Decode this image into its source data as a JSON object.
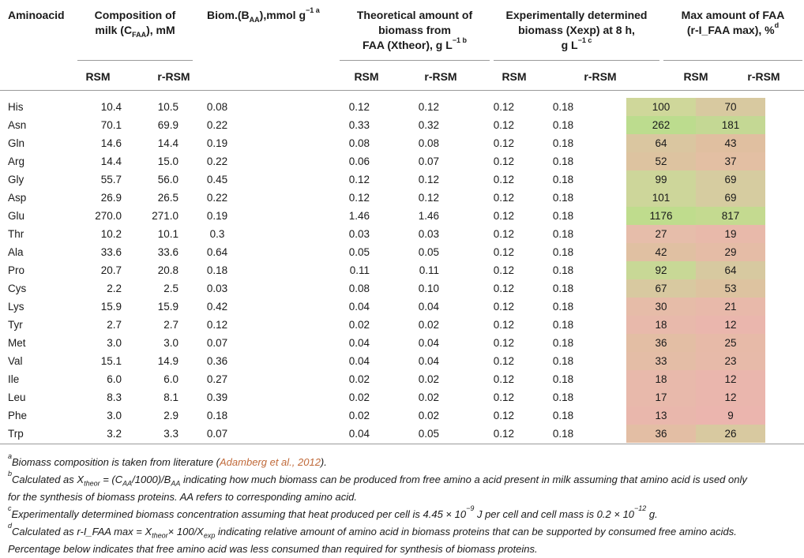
{
  "headers": {
    "aminoacid": "Aminoacid",
    "milk_l1": "Composition of",
    "milk_l2a": "milk (C",
    "milk_l2sub": "FAA",
    "milk_l2b": "), mM",
    "biom_a": "Biom.(B",
    "biom_sub": "AA",
    "biom_b": "),mmol g",
    "biom_sup": "−1 a",
    "theo_l1": "Theoretical amount of",
    "theo_l2": "biomass from",
    "theo_l3": "FAA (Xtheor), g L",
    "theo_sup": "−1 b",
    "exp_l1": "Experimentally determined",
    "exp_l2": "biomass (Xexp) at 8 h,",
    "exp_l3": "g L",
    "exp_sup": "−1 c",
    "max_l1": "Max amount of FAA",
    "max_l2": "(r-I_FAA max), %",
    "max_sup": "d",
    "rsm": "RSM",
    "rrsm": "r-RSM"
  },
  "rows": [
    {
      "aa": "His",
      "rsm": "10.4",
      "rrsm": "10.5",
      "biom": "0.08",
      "th1": "0.12",
      "th2": "0.12",
      "ex1": "0.12",
      "ex2": "0.18",
      "m1": "100",
      "m2": "70",
      "c1": "#cfd79a",
      "c2": "#d8c9a0"
    },
    {
      "aa": "Asn",
      "rsm": "70.1",
      "rrsm": "69.9",
      "biom": "0.22",
      "th1": "0.33",
      "th2": "0.32",
      "ex1": "0.12",
      "ex2": "0.18",
      "m1": "262",
      "m2": "181",
      "c1": "#bcdc8e",
      "c2": "#c4d894"
    },
    {
      "aa": "Gln",
      "rsm": "14.6",
      "rrsm": "14.4",
      "biom": "0.19",
      "th1": "0.08",
      "th2": "0.08",
      "ex1": "0.12",
      "ex2": "0.18",
      "m1": "64",
      "m2": "43",
      "c1": "#dac6a0",
      "c2": "#e0bfa0"
    },
    {
      "aa": "Arg",
      "rsm": "14.4",
      "rrsm": "15.0",
      "biom": "0.22",
      "th1": "0.06",
      "th2": "0.07",
      "ex1": "0.12",
      "ex2": "0.18",
      "m1": "52",
      "m2": "37",
      "c1": "#ddc3a0",
      "c2": "#e3bfa3"
    },
    {
      "aa": "Gly",
      "rsm": "55.7",
      "rrsm": "56.0",
      "biom": "0.45",
      "th1": "0.12",
      "th2": "0.12",
      "ex1": "0.12",
      "ex2": "0.18",
      "m1": "99",
      "m2": "69",
      "c1": "#cdd69a",
      "c2": "#d6cca0"
    },
    {
      "aa": "Asp",
      "rsm": "26.9",
      "rrsm": "26.5",
      "biom": "0.22",
      "th1": "0.12",
      "th2": "0.12",
      "ex1": "0.12",
      "ex2": "0.18",
      "m1": "101",
      "m2": "69",
      "c1": "#cdd69a",
      "c2": "#d6cca0"
    },
    {
      "aa": "Glu",
      "rsm": "270.0",
      "rrsm": "271.0",
      "biom": "0.19",
      "th1": "1.46",
      "th2": "1.46",
      "ex1": "0.12",
      "ex2": "0.18",
      "m1": "1176",
      "m2": "817",
      "c1": "#bfdc8d",
      "c2": "#c4da90"
    },
    {
      "aa": "Thr",
      "rsm": "10.2",
      "rrsm": "10.1",
      "biom": "0.3",
      "th1": "0.03",
      "th2": "0.03",
      "ex1": "0.12",
      "ex2": "0.18",
      "m1": "27",
      "m2": "19",
      "c1": "#e6bdaa",
      "c2": "#e8b9aa"
    },
    {
      "aa": "Ala",
      "rsm": "33.6",
      "rrsm": "33.6",
      "biom": "0.64",
      "th1": "0.05",
      "th2": "0.05",
      "ex1": "0.12",
      "ex2": "0.18",
      "m1": "42",
      "m2": "29",
      "c1": "#e0c0a2",
      "c2": "#e5bca6"
    },
    {
      "aa": "Pro",
      "rsm": "20.7",
      "rrsm": "20.8",
      "biom": "0.18",
      "th1": "0.11",
      "th2": "0.11",
      "ex1": "0.12",
      "ex2": "0.18",
      "m1": "92",
      "m2": "64",
      "c1": "#c8d896",
      "c2": "#d7c9a0"
    },
    {
      "aa": "Cys",
      "rsm": "2.2",
      "rrsm": "2.5",
      "biom": "0.03",
      "th1": "0.08",
      "th2": "0.10",
      "ex1": "0.12",
      "ex2": "0.18",
      "m1": "67",
      "m2": "53",
      "c1": "#d8c9a0",
      "c2": "#ddc3a0"
    },
    {
      "aa": "Lys",
      "rsm": "15.9",
      "rrsm": "15.9",
      "biom": "0.42",
      "th1": "0.04",
      "th2": "0.04",
      "ex1": "0.12",
      "ex2": "0.18",
      "m1": "30",
      "m2": "21",
      "c1": "#e6bca8",
      "c2": "#e8b9aa"
    },
    {
      "aa": "Tyr",
      "rsm": "2.7",
      "rrsm": "2.7",
      "biom": "0.12",
      "th1": "0.02",
      "th2": "0.02",
      "ex1": "0.12",
      "ex2": "0.18",
      "m1": "18",
      "m2": "12",
      "c1": "#e8b9ab",
      "c2": "#eab6ad"
    },
    {
      "aa": "Met",
      "rsm": "3.0",
      "rrsm": "3.0",
      "biom": "0.07",
      "th1": "0.04",
      "th2": "0.04",
      "ex1": "0.12",
      "ex2": "0.18",
      "m1": "36",
      "m2": "25",
      "c1": "#e3bea4",
      "c2": "#e7baa8"
    },
    {
      "aa": "Val",
      "rsm": "15.1",
      "rrsm": "14.9",
      "biom": "0.36",
      "th1": "0.04",
      "th2": "0.04",
      "ex1": "0.12",
      "ex2": "0.18",
      "m1": "33",
      "m2": "23",
      "c1": "#e4bda6",
      "c2": "#e7baa9"
    },
    {
      "aa": "Ile",
      "rsm": "6.0",
      "rrsm": "6.0",
      "biom": "0.27",
      "th1": "0.02",
      "th2": "0.02",
      "ex1": "0.12",
      "ex2": "0.18",
      "m1": "18",
      "m2": "12",
      "c1": "#e8b9ab",
      "c2": "#eab6ad"
    },
    {
      "aa": "Leu",
      "rsm": "8.3",
      "rrsm": "8.1",
      "biom": "0.39",
      "th1": "0.02",
      "th2": "0.02",
      "ex1": "0.12",
      "ex2": "0.18",
      "m1": "17",
      "m2": "12",
      "c1": "#e8b9ab",
      "c2": "#eab6ad"
    },
    {
      "aa": "Phe",
      "rsm": "3.0",
      "rrsm": "2.9",
      "biom": "0.18",
      "th1": "0.02",
      "th2": "0.02",
      "ex1": "0.12",
      "ex2": "0.18",
      "m1": "13",
      "m2": "9",
      "c1": "#e9b7ac",
      "c2": "#ebb5ae"
    },
    {
      "aa": "Trp",
      "rsm": "3.2",
      "rrsm": "3.3",
      "biom": "0.07",
      "th1": "0.04",
      "th2": "0.05",
      "ex1": "0.12",
      "ex2": "0.18",
      "m1": "36",
      "m2": "26",
      "c1": "#e3bea4",
      "c2": "#d8c9a0"
    }
  ],
  "footnotes": {
    "a_mark": "a",
    "a_text1": "Biomass composition is taken from literature (",
    "a_link": "Adamberg et al., 2012",
    "a_text2": ").",
    "b_mark": "b",
    "b_text1": "Calculated as X",
    "b_sub1": "theor",
    "b_text2": " = (C",
    "b_sub2": "AA",
    "b_text3": "/1000)/B",
    "b_sub3": "AA",
    "b_text4": " indicating how much biomass can be produced from free amino a acid present in milk assuming that amino acid is used only",
    "b_line2": "for the synthesis of biomass proteins. AA refers to corresponding amino acid.",
    "c_mark": "c",
    "c_text1": "Experimentally determined biomass concentration assuming that heat produced per cell is 4.45 × 10",
    "c_sup1": "−9",
    "c_text2": " J per cell and cell mass is 0.2 × 10",
    "c_sup2": "−12",
    "c_text3": " g.",
    "d_mark": "d",
    "d_text1": "Calculated as r-I_FAA max = X",
    "d_sub1": "theor",
    "d_text2": "× 100/X",
    "d_sub2": "exp",
    "d_text3": " indicating relative amount of amino acid in biomass proteins that can be supported by consumed free amino acids.",
    "d_line2": "Percentage below indicates that free amino acid was less consumed than required for synthesis of biomass proteins."
  }
}
